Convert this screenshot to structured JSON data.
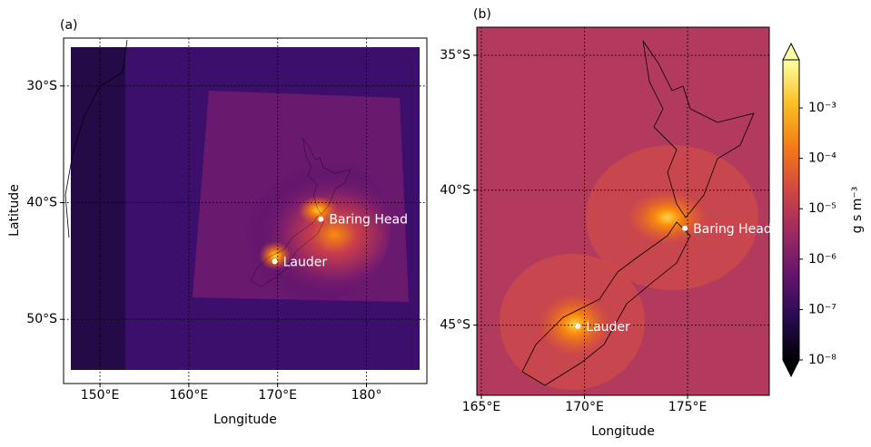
{
  "chart_data": [
    {
      "type": "map",
      "label": "(a)",
      "xlabel": "Longitude",
      "ylabel": "Latitude",
      "xlim": [
        145.9,
        186.8
      ],
      "ylim": [
        -55.5,
        -25.9
      ],
      "grid": true,
      "xticks": [
        {
          "value": 150,
          "label": "150°E"
        },
        {
          "value": 160,
          "label": "160°E"
        },
        {
          "value": 170,
          "label": "170°E"
        },
        {
          "value": 180,
          "label": "180°"
        }
      ],
      "yticks": [
        {
          "value": -30,
          "label": "30°S"
        },
        {
          "value": -40,
          "label": "40°S"
        },
        {
          "value": -50,
          "label": "50°S"
        }
      ],
      "points": [
        {
          "name": "Baring Head",
          "lon": 174.87,
          "lat": -41.41
        },
        {
          "name": "Lauder",
          "lon": 169.68,
          "lat": -45.04
        }
      ]
    },
    {
      "type": "map",
      "label": "(b)",
      "xlabel": "Longitude",
      "xlim": [
        164.78,
        178.96
      ],
      "ylim": [
        -47.6,
        -33.96
      ],
      "grid": true,
      "xticks": [
        {
          "value": 165,
          "label": "165°E"
        },
        {
          "value": 170,
          "label": "170°E"
        },
        {
          "value": 175,
          "label": "175°E"
        }
      ],
      "yticks": [
        {
          "value": -35,
          "label": "35°S"
        },
        {
          "value": -40,
          "label": "40°S"
        },
        {
          "value": -45,
          "label": "45°S"
        }
      ],
      "points": [
        {
          "name": "Baring Head",
          "lon": 174.87,
          "lat": -41.41
        },
        {
          "name": "Lauder",
          "lon": 169.68,
          "lat": -45.04
        }
      ]
    },
    {
      "type": "colorbar",
      "label": "g s m⁻³",
      "log": true,
      "zlim": [
        1e-08,
        0.009
      ],
      "colors": [
        "#000004",
        "#280b54",
        "#65156e",
        "#9f2a63",
        "#d44842",
        "#f57d15",
        "#fac127",
        "#fcffa4"
      ],
      "ticks": [
        {
          "value": 1e-08,
          "label": "10⁻⁸"
        },
        {
          "value": 1e-07,
          "label": "10⁻⁷"
        },
        {
          "value": 1e-06,
          "label": "10⁻⁶"
        },
        {
          "value": 1e-05,
          "label": "10⁻⁵"
        },
        {
          "value": 0.0001,
          "label": "10⁻⁴"
        },
        {
          "value": 0.001,
          "label": "10⁻³"
        }
      ]
    }
  ]
}
